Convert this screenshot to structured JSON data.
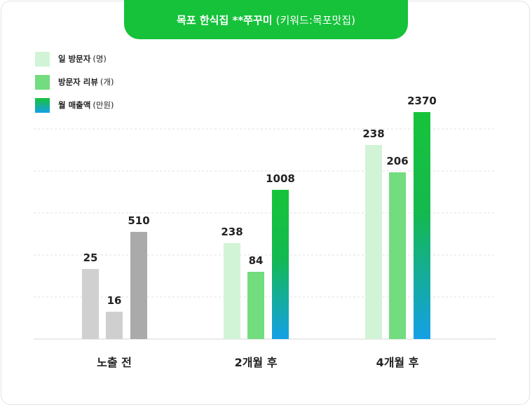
{
  "title": {
    "main": "목포 한식집 **쭈꾸미",
    "sub": "(키워드:목포맛집)"
  },
  "legend": [
    {
      "label": "일 방문자",
      "unit": "(명)"
    },
    {
      "label": "방문자 리뷰",
      "unit": "(개)"
    },
    {
      "label": "월 매출액",
      "unit": "(만원)"
    }
  ],
  "colors": {
    "accent": "#15c23a",
    "series1": "#d2f4d6",
    "series2": "#72dc7e",
    "series3_top": "#17c33a",
    "series3_bottom": "#14a0e6",
    "before1": "#d0d0d0",
    "before2": "#cfcfcf",
    "before3": "#aaaaaa"
  },
  "chart_data": {
    "type": "bar",
    "categories": [
      "노출 전",
      "2개월 후",
      "4개월 후"
    ],
    "series": [
      {
        "name": "일 방문자 (명)",
        "values": [
          25,
          238,
          238
        ]
      },
      {
        "name": "방문자 리뷰 (개)",
        "values": [
          16,
          84,
          206
        ]
      },
      {
        "name": "월 매출액 (만원)",
        "values": [
          510,
          1008,
          2370
        ]
      }
    ],
    "grid": true,
    "legend_position": "top-left"
  }
}
